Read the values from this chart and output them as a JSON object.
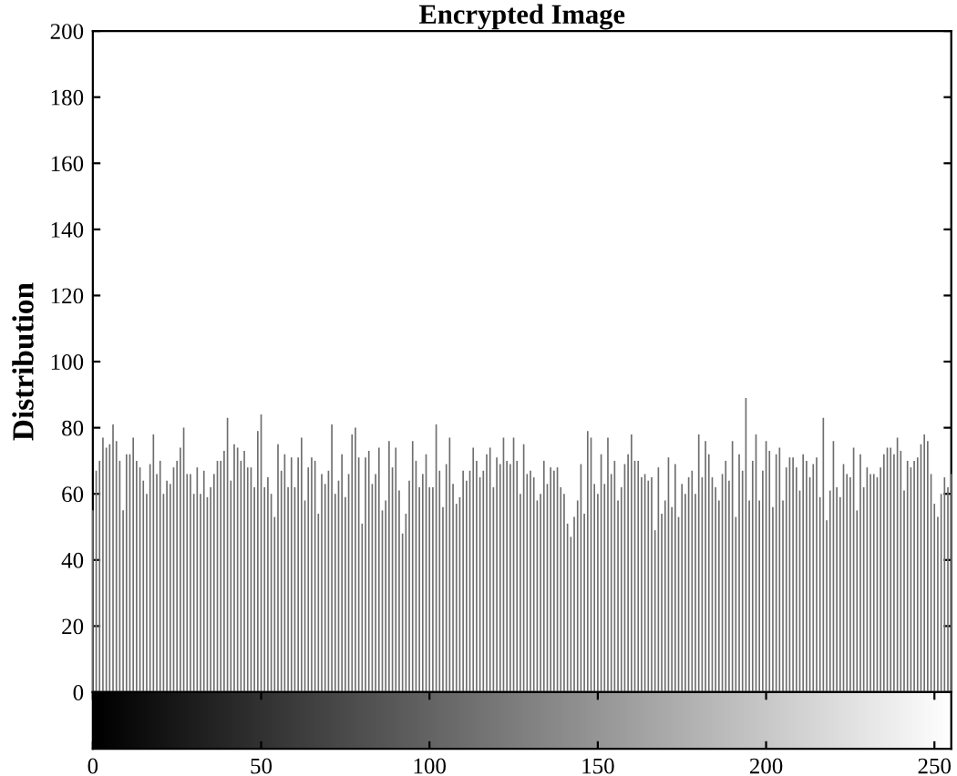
{
  "chart_data": {
    "type": "bar",
    "title": "Encrypted Image",
    "ylabel": "Distribution",
    "x": [
      0,
      1,
      2,
      3,
      4,
      5,
      6,
      7,
      8,
      9,
      10,
      11,
      12,
      13,
      14,
      15,
      16,
      17,
      18,
      19,
      20,
      21,
      22,
      23,
      24,
      25,
      26,
      27,
      28,
      29,
      30,
      31,
      32,
      33,
      34,
      35,
      36,
      37,
      38,
      39,
      40,
      41,
      42,
      43,
      44,
      45,
      46,
      47,
      48,
      49,
      50,
      51,
      52,
      53,
      54,
      55,
      56,
      57,
      58,
      59,
      60,
      61,
      62,
      63,
      64,
      65,
      66,
      67,
      68,
      69,
      70,
      71,
      72,
      73,
      74,
      75,
      76,
      77,
      78,
      79,
      80,
      81,
      82,
      83,
      84,
      85,
      86,
      87,
      88,
      89,
      90,
      91,
      92,
      93,
      94,
      95,
      96,
      97,
      98,
      99,
      100,
      101,
      102,
      103,
      104,
      105,
      106,
      107,
      108,
      109,
      110,
      111,
      112,
      113,
      114,
      115,
      116,
      117,
      118,
      119,
      120,
      121,
      122,
      123,
      124,
      125,
      126,
      127,
      128,
      129,
      130,
      131,
      132,
      133,
      134,
      135,
      136,
      137,
      138,
      139,
      140,
      141,
      142,
      143,
      144,
      145,
      146,
      147,
      148,
      149,
      150,
      151,
      152,
      153,
      154,
      155,
      156,
      157,
      158,
      159,
      160,
      161,
      162,
      163,
      164,
      165,
      166,
      167,
      168,
      169,
      170,
      171,
      172,
      173,
      174,
      175,
      176,
      177,
      178,
      179,
      180,
      181,
      182,
      183,
      184,
      185,
      186,
      187,
      188,
      189,
      190,
      191,
      192,
      193,
      194,
      195,
      196,
      197,
      198,
      199,
      200,
      201,
      202,
      203,
      204,
      205,
      206,
      207,
      208,
      209,
      210,
      211,
      212,
      213,
      214,
      215,
      216,
      217,
      218,
      219,
      220,
      221,
      222,
      223,
      224,
      225,
      226,
      227,
      228,
      229,
      230,
      231,
      232,
      233,
      234,
      235,
      236,
      237,
      238,
      239,
      240,
      241,
      242,
      243,
      244,
      245,
      246,
      247,
      248,
      249,
      250,
      251,
      252,
      253,
      254,
      255
    ],
    "values": [
      55,
      67,
      70,
      77,
      74,
      75,
      81,
      76,
      70,
      55,
      72,
      72,
      77,
      70,
      68,
      64,
      60,
      69,
      78,
      66,
      70,
      60,
      64,
      63,
      68,
      70,
      74,
      80,
      66,
      66,
      60,
      68,
      60,
      67,
      59,
      62,
      66,
      70,
      70,
      73,
      83,
      64,
      75,
      74,
      70,
      73,
      68,
      68,
      62,
      79,
      84,
      62,
      65,
      60,
      53,
      75,
      67,
      72,
      62,
      71,
      62,
      71,
      77,
      58,
      68,
      71,
      70,
      54,
      66,
      63,
      67,
      81,
      60,
      64,
      72,
      59,
      66,
      78,
      80,
      71,
      51,
      71,
      73,
      63,
      66,
      74,
      55,
      58,
      76,
      68,
      74,
      61,
      48,
      54,
      64,
      76,
      70,
      62,
      66,
      72,
      62,
      62,
      81,
      67,
      56,
      69,
      77,
      63,
      57,
      59,
      67,
      64,
      67,
      74,
      70,
      65,
      67,
      72,
      74,
      62,
      71,
      69,
      77,
      70,
      69,
      77,
      70,
      60,
      75,
      66,
      67,
      65,
      58,
      60,
      70,
      63,
      68,
      67,
      68,
      62,
      60,
      51,
      47,
      53,
      58,
      69,
      54,
      79,
      77,
      63,
      60,
      72,
      63,
      77,
      66,
      70,
      58,
      62,
      69,
      72,
      78,
      70,
      70,
      65,
      66,
      64,
      65,
      49,
      68,
      54,
      58,
      71,
      56,
      69,
      53,
      63,
      60,
      65,
      67,
      60,
      78,
      65,
      76,
      72,
      65,
      62,
      58,
      66,
      70,
      64,
      76,
      53,
      72,
      67,
      89,
      58,
      70,
      78,
      58,
      67,
      76,
      73,
      56,
      72,
      74,
      58,
      68,
      71,
      71,
      68,
      61,
      72,
      70,
      65,
      69,
      71,
      59,
      83,
      52,
      61,
      76,
      62,
      59,
      69,
      66,
      65,
      74,
      55,
      72,
      62,
      68,
      66,
      66,
      65,
      68,
      72,
      74,
      74,
      72,
      77,
      73,
      61,
      70,
      68,
      70,
      71,
      75,
      78,
      76,
      66,
      57,
      53,
      60,
      65,
      62,
      66
    ],
    "color": "#6e6e6e",
    "xlim": [
      0,
      255
    ],
    "xticks": [
      0,
      50,
      100,
      150,
      200,
      250
    ],
    "ylim": [
      0,
      200
    ],
    "yticks": [
      0,
      20,
      40,
      60,
      80,
      100,
      120,
      140,
      160,
      180,
      200
    ],
    "grid": false,
    "legend": false
  }
}
